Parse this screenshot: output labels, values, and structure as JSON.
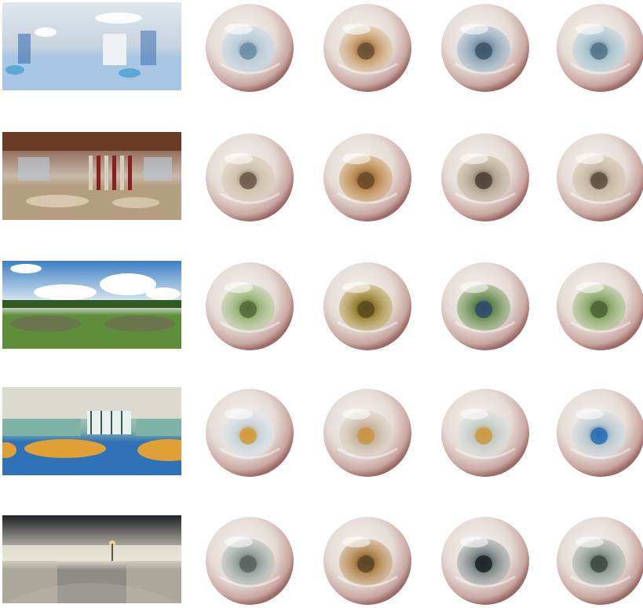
{
  "rows": [
    {
      "name": "hospital-room",
      "pano": {
        "sky": "#dfe7ee",
        "mid": "#c7d3df",
        "floor": "#a9c7e4",
        "accent": "#3f6fb0",
        "light": "#ffffff",
        "features": "indoor"
      },
      "eyes": [
        {
          "iris_tint": "#b9ccd8",
          "pupil": "#6f8ea3",
          "reflection": "#c4d7e6"
        },
        {
          "iris_tint": "#c49a68",
          "pupil": "#6b4f33",
          "reflection": "#d9c1a0"
        },
        {
          "iris_tint": "#8fa4b6",
          "pupil": "#3d5568",
          "reflection": "#a9bfd0"
        },
        {
          "iris_tint": "#a9c3cf",
          "pupil": "#567485",
          "reflection": "#bcd3df"
        }
      ]
    },
    {
      "name": "ornate-hall",
      "pano": {
        "sky": "#6b3a26",
        "mid": "#c9b9a9",
        "floor": "#b39e82",
        "accent": "#8b1f1f",
        "light": "#f5e9d2",
        "features": "hall"
      },
      "eyes": [
        {
          "iris_tint": "#cfc1ad",
          "pupil": "#6e5a46",
          "reflection": "#d8cbb8"
        },
        {
          "iris_tint": "#b98a52",
          "pupil": "#6b4a28",
          "reflection": "#cfa774"
        },
        {
          "iris_tint": "#b2a592",
          "pupil": "#4e4236",
          "reflection": "#c9bba5"
        },
        {
          "iris_tint": "#c6b8a3",
          "pupil": "#5f4f3f",
          "reflection": "#d3c4ad"
        }
      ]
    },
    {
      "name": "garden",
      "pano": {
        "sky": "#3d7fc4",
        "mid": "#e6eef5",
        "floor": "#5f8e3a",
        "accent": "#2f5a22",
        "light": "#ffffff",
        "features": "outdoor"
      },
      "eyes": [
        {
          "iris_tint": "#9fb67e",
          "pupil": "#556b3c",
          "reflection": "#b9cba0"
        },
        {
          "iris_tint": "#a08a3e",
          "pupil": "#5a4a1c",
          "reflection": "#c1ad6c"
        },
        {
          "iris_tint": "#6f8f57",
          "pupil": "#2f4a6b",
          "reflection": "#90ab7a"
        },
        {
          "iris_tint": "#8fab6e",
          "pupil": "#4d6336",
          "reflection": "#abc290"
        }
      ]
    },
    {
      "name": "sports-hall",
      "pano": {
        "sky": "#e7e5df",
        "mid": "#7fb3a8",
        "floor": "#2f72b8",
        "accent": "#e0a036",
        "light": "#ffffff",
        "features": "gym"
      },
      "eyes": [
        {
          "iris_tint": "#c9d4dc",
          "pupil": "#d19a3a",
          "reflection": "#dfe6ea"
        },
        {
          "iris_tint": "#c8b9a6",
          "pupil": "#c99544",
          "reflection": "#ddd2c4"
        },
        {
          "iris_tint": "#c4cdc8",
          "pupil": "#c99a42",
          "reflection": "#d9dfdb"
        },
        {
          "iris_tint": "#b9c6cd",
          "pupil": "#2c6eb3",
          "reflection": "#d2dce2"
        }
      ]
    },
    {
      "name": "night-plaza",
      "pano": {
        "sky": "#1f2126",
        "mid": "#e9e4d6",
        "floor": "#8d8c88",
        "accent": "#f3d58a",
        "light": "#ffffff",
        "features": "night"
      },
      "eyes": [
        {
          "iris_tint": "#9aa4a0",
          "pupil": "#5c6260",
          "reflection": "#b9c0bc"
        },
        {
          "iris_tint": "#b08650",
          "pupil": "#5e4426",
          "reflection": "#c7a57a"
        },
        {
          "iris_tint": "#7f8a8a",
          "pupil": "#1b2326",
          "reflection": "#a5adab"
        },
        {
          "iris_tint": "#8f9d94",
          "pupil": "#3f4a44",
          "reflection": "#adb8b1"
        }
      ]
    }
  ]
}
